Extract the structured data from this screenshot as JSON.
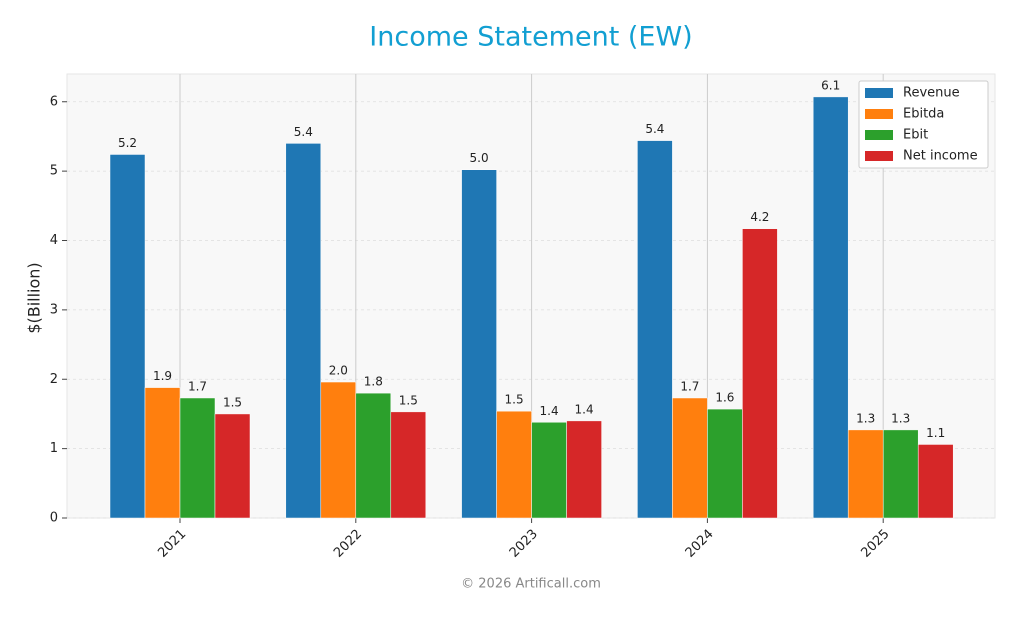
{
  "chart_data": {
    "type": "bar",
    "title": "Income Statement (EW)",
    "y_label": "$(Billion)",
    "categories": [
      "2021",
      "2022",
      "2023",
      "2024",
      "2025"
    ],
    "series": [
      {
        "name": "Revenue",
        "color": "#1f77b4",
        "values": [
          5.24,
          5.4,
          5.02,
          5.44,
          6.07
        ],
        "value_labels": [
          "5.2",
          "5.4",
          "5.0",
          "5.4",
          "6.1"
        ]
      },
      {
        "name": "Ebitda",
        "color": "#ff7f0e",
        "values": [
          1.88,
          1.96,
          1.54,
          1.73,
          1.27
        ],
        "value_labels": [
          "1.9",
          "2.0",
          "1.5",
          "1.7",
          "1.3"
        ]
      },
      {
        "name": "Ebit",
        "color": "#2ca02c",
        "values": [
          1.73,
          1.8,
          1.38,
          1.57,
          1.27
        ],
        "value_labels": [
          "1.7",
          "1.8",
          "1.4",
          "1.6",
          "1.3"
        ]
      },
      {
        "name": "Net income",
        "color": "#d62728",
        "values": [
          1.5,
          1.53,
          1.4,
          4.17,
          1.06
        ],
        "value_labels": [
          "1.5",
          "1.5",
          "1.4",
          "4.2",
          "1.1"
        ]
      }
    ],
    "ylim": [
      0,
      6.4
    ],
    "yticks": [
      0,
      1,
      2,
      3,
      4,
      5,
      6
    ],
    "grid": true,
    "legend": "upper right"
  },
  "footer": "© 2026 Artificall.com"
}
